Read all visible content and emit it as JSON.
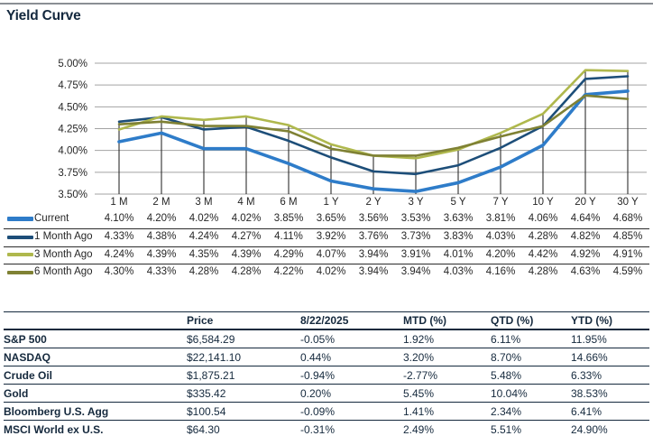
{
  "page": {
    "title": "Yield Curve"
  },
  "chart_data": {
    "type": "line",
    "title": "Yield Curve",
    "categories": [
      "1 M",
      "2 M",
      "3 M",
      "4 M",
      "6 M",
      "1 Y",
      "2 Y",
      "3 Y",
      "5 Y",
      "7 Y",
      "10 Y",
      "20 Y",
      "30 Y"
    ],
    "series": [
      {
        "name": "Current",
        "color": "#2E7CC9",
        "line_width": 3.6,
        "values": [
          4.1,
          4.2,
          4.02,
          4.02,
          3.85,
          3.65,
          3.56,
          3.53,
          3.63,
          3.81,
          4.06,
          4.64,
          4.68
        ]
      },
      {
        "name": "1 Month Ago",
        "color": "#1D4E79",
        "line_width": 2.6,
        "values": [
          4.33,
          4.38,
          4.24,
          4.27,
          4.11,
          3.92,
          3.76,
          3.73,
          3.83,
          4.03,
          4.28,
          4.82,
          4.85
        ]
      },
      {
        "name": "3 Month Ago",
        "color": "#AFB84D",
        "line_width": 2.6,
        "values": [
          4.24,
          4.39,
          4.35,
          4.39,
          4.29,
          4.07,
          3.94,
          3.91,
          4.01,
          4.2,
          4.42,
          4.92,
          4.91
        ]
      },
      {
        "name": "6 Month Ago",
        "color": "#7F8134",
        "line_width": 2.6,
        "values": [
          4.3,
          4.33,
          4.28,
          4.28,
          4.22,
          4.02,
          3.94,
          3.94,
          4.03,
          4.16,
          4.28,
          4.63,
          4.59
        ]
      }
    ],
    "y_ticks": [
      "5.00%",
      "4.75%",
      "4.50%",
      "4.25%",
      "4.00%",
      "3.75%",
      "3.50%"
    ],
    "ylim": [
      3.5,
      5.0
    ],
    "value_suffix": "%",
    "grid": "horizontal",
    "drop_lines": true,
    "legend_position": "table-below-left",
    "colors": {
      "gridline": "#A3A3A3",
      "drop_line": "#1a1a1a",
      "axis_text": "#262626"
    }
  },
  "market_table": {
    "headers": [
      "",
      "Price",
      "8/22/2025",
      "MTD (%)",
      "QTD (%)",
      "YTD (%)"
    ],
    "rows": [
      [
        "S&P 500",
        "$6,584.29",
        "-0.05%",
        "1.92%",
        "6.11%",
        "11.95%"
      ],
      [
        "NASDAQ",
        "$22,141.10",
        "0.44%",
        "3.20%",
        "8.70%",
        "14.66%"
      ],
      [
        "Crude Oil",
        "$1,875.21",
        "-0.94%",
        "-2.77%",
        "5.48%",
        "6.33%"
      ],
      [
        "Gold",
        "$335.42",
        "0.20%",
        "5.45%",
        "10.04%",
        "38.53%"
      ],
      [
        "Bloomberg U.S. Agg",
        "$100.54",
        "-0.09%",
        "1.41%",
        "2.34%",
        "6.41%"
      ],
      [
        "MSCI World ex U.S.",
        "$64.30",
        "-0.31%",
        "2.49%",
        "5.51%",
        "24.90%"
      ]
    ]
  }
}
